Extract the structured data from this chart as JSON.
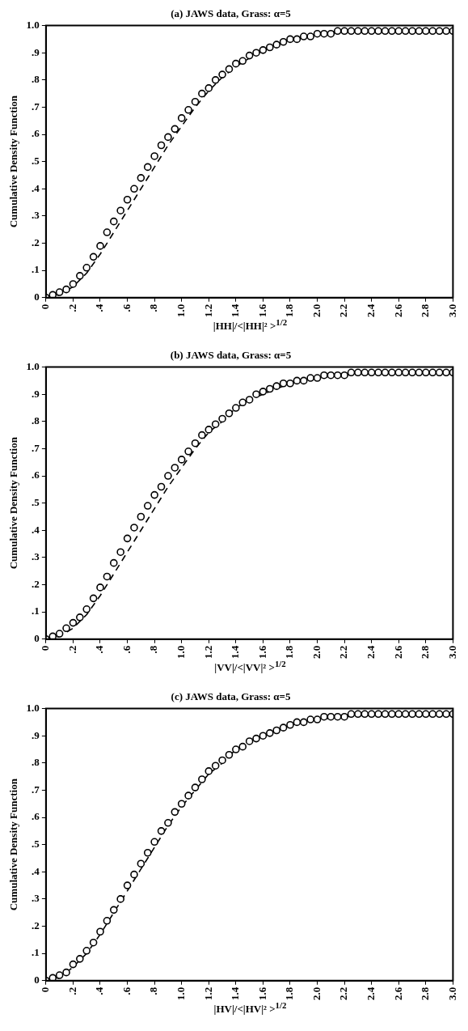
{
  "chart_data": [
    {
      "type": "scatter",
      "title": "(a) JAWS data, Grass: α=5",
      "xlabel": "|HH|/<|HH|² >$^{1/2}$",
      "ylabel": "Cumulative Density Function",
      "xlim": [
        0,
        3
      ],
      "ylim": [
        0,
        1
      ],
      "xticks": [
        0,
        {
          "value": 0.2,
          "label": ".2"
        },
        {
          "value": 0.4,
          "label": ".4"
        },
        {
          "value": 0.6,
          "label": ".6"
        },
        {
          "value": 0.8,
          "label": ".8"
        },
        {
          "value": 1,
          "label": "1.0"
        },
        1.2,
        1.4,
        1.6,
        1.8,
        {
          "value": 2,
          "label": "2.0"
        },
        2.2,
        2.4,
        2.6,
        2.8,
        {
          "value": 3,
          "label": "3.0"
        }
      ],
      "yticks": [
        {
          "value": 0,
          "label": "0"
        },
        {
          "value": 0.1,
          "label": ".1"
        },
        {
          "value": 0.2,
          "label": ".2"
        },
        {
          "value": 0.3,
          "label": ".3"
        },
        {
          "value": 0.4,
          "label": ".4"
        },
        {
          "value": 0.5,
          "label": ".5"
        },
        {
          "value": 0.6,
          "label": ".6"
        },
        {
          "value": 0.7,
          "label": ".7"
        },
        {
          "value": 0.8,
          "label": ".8"
        },
        {
          "value": 0.9,
          "label": ".9"
        },
        {
          "value": 1,
          "label": "1.0"
        }
      ],
      "legend": false,
      "grid": false,
      "series": [
        {
          "marker": "circle",
          "color": "#000000",
          "x": [
            0,
            0.05,
            0.1,
            0.15,
            0.2,
            0.25,
            0.3,
            0.35,
            0.4,
            0.45,
            0.5,
            0.55,
            0.6,
            0.65,
            0.7,
            0.75,
            0.8,
            0.85,
            0.9,
            0.95,
            1,
            1.05,
            1.1,
            1.15,
            1.2,
            1.25,
            1.3,
            1.35,
            1.4,
            1.45,
            1.5,
            1.55,
            1.6,
            1.65,
            1.7,
            1.75,
            1.8,
            1.85,
            1.9,
            1.95,
            2,
            2.05,
            2.1,
            2.15,
            2.2,
            2.25,
            2.3,
            2.35,
            2.4,
            2.45,
            2.5,
            2.55,
            2.6,
            2.65,
            2.7,
            2.75,
            2.8,
            2.85,
            2.9,
            2.95,
            3
          ],
          "values": [
            0,
            0.01,
            0.02,
            0.03,
            0.05,
            0.08,
            0.11,
            0.15,
            0.19,
            0.24,
            0.28,
            0.32,
            0.36,
            0.4,
            0.44,
            0.48,
            0.52,
            0.56,
            0.59,
            0.62,
            0.66,
            0.69,
            0.72,
            0.75,
            0.77,
            0.8,
            0.82,
            0.84,
            0.86,
            0.87,
            0.89,
            0.9,
            0.91,
            0.92,
            0.93,
            0.94,
            0.95,
            0.95,
            0.96,
            0.96,
            0.97,
            0.97,
            0.97,
            0.98,
            0.98,
            0.98,
            0.98,
            0.98,
            0.98,
            0.98,
            0.98,
            0.98,
            0.98,
            0.98,
            0.98,
            0.98,
            0.98,
            0.98,
            0.98,
            0.98,
            0.98
          ]
        },
        {
          "type": "line",
          "marker": "none",
          "line_style": "dashed",
          "color": "#000000",
          "x": [
            0,
            0.1,
            0.2,
            0.3,
            0.4,
            0.5,
            0.6,
            0.7,
            0.8,
            0.9,
            1,
            1.1,
            1.2,
            1.3,
            1.4,
            1.5,
            1.6,
            1.8,
            2,
            2.2,
            2.5,
            3
          ],
          "values": [
            0,
            0.01,
            0.04,
            0.09,
            0.16,
            0.24,
            0.32,
            0.4,
            0.48,
            0.56,
            0.63,
            0.7,
            0.76,
            0.81,
            0.85,
            0.88,
            0.91,
            0.95,
            0.97,
            0.98,
            0.98,
            0.98
          ]
        }
      ]
    },
    {
      "type": "scatter",
      "title": "(b) JAWS data, Grass: α=5",
      "xlabel": "|VV|/<|VV|² >$^{1/2}$",
      "ylabel": "Cumulative Density Function",
      "xlim": [
        0,
        3
      ],
      "ylim": [
        0,
        1
      ],
      "xticks": [
        0,
        {
          "value": 0.2,
          "label": ".2"
        },
        {
          "value": 0.4,
          "label": ".4"
        },
        {
          "value": 0.6,
          "label": ".6"
        },
        {
          "value": 0.8,
          "label": ".8"
        },
        {
          "value": 1,
          "label": "1.0"
        },
        1.2,
        1.4,
        1.6,
        1.8,
        {
          "value": 2,
          "label": "2.0"
        },
        2.2,
        2.4,
        2.6,
        2.8,
        {
          "value": 3,
          "label": "3.0"
        }
      ],
      "yticks": [
        {
          "value": 0,
          "label": "0"
        },
        {
          "value": 0.1,
          "label": ".1"
        },
        {
          "value": 0.2,
          "label": ".2"
        },
        {
          "value": 0.3,
          "label": ".3"
        },
        {
          "value": 0.4,
          "label": ".4"
        },
        {
          "value": 0.5,
          "label": ".5"
        },
        {
          "value": 0.6,
          "label": ".6"
        },
        {
          "value": 0.7,
          "label": ".7"
        },
        {
          "value": 0.8,
          "label": ".8"
        },
        {
          "value": 0.9,
          "label": ".9"
        },
        {
          "value": 1,
          "label": "1.0"
        }
      ],
      "legend": false,
      "grid": false,
      "series": [
        {
          "marker": "circle",
          "color": "#000000",
          "x": [
            0,
            0.05,
            0.1,
            0.15,
            0.2,
            0.25,
            0.3,
            0.35,
            0.4,
            0.45,
            0.5,
            0.55,
            0.6,
            0.65,
            0.7,
            0.75,
            0.8,
            0.85,
            0.9,
            0.95,
            1,
            1.05,
            1.1,
            1.15,
            1.2,
            1.25,
            1.3,
            1.35,
            1.4,
            1.45,
            1.5,
            1.55,
            1.6,
            1.65,
            1.7,
            1.75,
            1.8,
            1.85,
            1.9,
            1.95,
            2,
            2.05,
            2.1,
            2.15,
            2.2,
            2.25,
            2.3,
            2.35,
            2.4,
            2.45,
            2.5,
            2.55,
            2.6,
            2.65,
            2.7,
            2.75,
            2.8,
            2.85,
            2.9,
            2.95,
            3
          ],
          "values": [
            0,
            0.01,
            0.02,
            0.04,
            0.06,
            0.08,
            0.11,
            0.15,
            0.19,
            0.23,
            0.28,
            0.32,
            0.37,
            0.41,
            0.45,
            0.49,
            0.53,
            0.56,
            0.6,
            0.63,
            0.66,
            0.69,
            0.72,
            0.75,
            0.77,
            0.79,
            0.81,
            0.83,
            0.85,
            0.87,
            0.88,
            0.9,
            0.91,
            0.92,
            0.93,
            0.94,
            0.94,
            0.95,
            0.95,
            0.96,
            0.96,
            0.97,
            0.97,
            0.97,
            0.97,
            0.98,
            0.98,
            0.98,
            0.98,
            0.98,
            0.98,
            0.98,
            0.98,
            0.98,
            0.98,
            0.98,
            0.98,
            0.98,
            0.98,
            0.98,
            0.98
          ]
        },
        {
          "type": "line",
          "marker": "none",
          "line_style": "dashed",
          "color": "#000000",
          "x": [
            0,
            0.1,
            0.2,
            0.3,
            0.4,
            0.5,
            0.6,
            0.7,
            0.8,
            0.9,
            1,
            1.1,
            1.2,
            1.3,
            1.4,
            1.5,
            1.6,
            1.8,
            2,
            2.2,
            2.5,
            3
          ],
          "values": [
            0,
            0.01,
            0.04,
            0.09,
            0.16,
            0.24,
            0.32,
            0.4,
            0.48,
            0.56,
            0.63,
            0.7,
            0.76,
            0.8,
            0.85,
            0.88,
            0.9,
            0.94,
            0.96,
            0.97,
            0.98,
            0.98
          ]
        }
      ]
    },
    {
      "type": "scatter",
      "title": "(c) JAWS data, Grass: α=5",
      "xlabel": "|HV|/<|HV|² >$^{1/2}$",
      "ylabel": "Cumulative Density Function",
      "xlim": [
        0,
        3
      ],
      "ylim": [
        0,
        1
      ],
      "xticks": [
        0,
        {
          "value": 0.2,
          "label": ".2"
        },
        {
          "value": 0.4,
          "label": ".4"
        },
        {
          "value": 0.6,
          "label": ".6"
        },
        {
          "value": 0.8,
          "label": ".8"
        },
        {
          "value": 1,
          "label": "1.0"
        },
        1.2,
        1.4,
        1.6,
        1.8,
        {
          "value": 2,
          "label": "2.0"
        },
        2.2,
        2.4,
        2.6,
        2.8,
        {
          "value": 3,
          "label": "3.0"
        }
      ],
      "yticks": [
        {
          "value": 0,
          "label": "0"
        },
        {
          "value": 0.1,
          "label": ".1"
        },
        {
          "value": 0.2,
          "label": ".2"
        },
        {
          "value": 0.3,
          "label": ".3"
        },
        {
          "value": 0.4,
          "label": ".4"
        },
        {
          "value": 0.5,
          "label": ".5"
        },
        {
          "value": 0.6,
          "label": ".6"
        },
        {
          "value": 0.7,
          "label": ".7"
        },
        {
          "value": 0.8,
          "label": ".8"
        },
        {
          "value": 0.9,
          "label": ".9"
        },
        {
          "value": 1,
          "label": "1.0"
        }
      ],
      "legend": false,
      "grid": false,
      "series": [
        {
          "marker": "circle",
          "color": "#000000",
          "x": [
            0,
            0.05,
            0.1,
            0.15,
            0.2,
            0.25,
            0.3,
            0.35,
            0.4,
            0.45,
            0.5,
            0.55,
            0.6,
            0.65,
            0.7,
            0.75,
            0.8,
            0.85,
            0.9,
            0.95,
            1,
            1.05,
            1.1,
            1.15,
            1.2,
            1.25,
            1.3,
            1.35,
            1.4,
            1.45,
            1.5,
            1.55,
            1.6,
            1.65,
            1.7,
            1.75,
            1.8,
            1.85,
            1.9,
            1.95,
            2,
            2.05,
            2.1,
            2.15,
            2.2,
            2.25,
            2.3,
            2.35,
            2.4,
            2.45,
            2.5,
            2.55,
            2.6,
            2.65,
            2.7,
            2.75,
            2.8,
            2.85,
            2.9,
            2.95,
            3
          ],
          "values": [
            0,
            0.01,
            0.02,
            0.03,
            0.06,
            0.08,
            0.11,
            0.14,
            0.18,
            0.22,
            0.26,
            0.3,
            0.35,
            0.39,
            0.43,
            0.47,
            0.51,
            0.55,
            0.58,
            0.62,
            0.65,
            0.68,
            0.71,
            0.74,
            0.77,
            0.79,
            0.81,
            0.83,
            0.85,
            0.86,
            0.88,
            0.89,
            0.9,
            0.91,
            0.92,
            0.93,
            0.94,
            0.95,
            0.95,
            0.96,
            0.96,
            0.97,
            0.97,
            0.97,
            0.97,
            0.98,
            0.98,
            0.98,
            0.98,
            0.98,
            0.98,
            0.98,
            0.98,
            0.98,
            0.98,
            0.98,
            0.98,
            0.98,
            0.98,
            0.98,
            0.98
          ]
        },
        {
          "type": "line",
          "marker": "none",
          "line_style": "dashed",
          "color": "#000000",
          "x": [
            0,
            0.1,
            0.2,
            0.3,
            0.4,
            0.5,
            0.6,
            0.7,
            0.8,
            0.9,
            1,
            1.1,
            1.2,
            1.3,
            1.4,
            1.5,
            1.6,
            1.8,
            2,
            2.2,
            2.5,
            3
          ],
          "values": [
            0,
            0.01,
            0.05,
            0.1,
            0.17,
            0.25,
            0.33,
            0.41,
            0.49,
            0.57,
            0.64,
            0.7,
            0.76,
            0.8,
            0.85,
            0.88,
            0.9,
            0.94,
            0.96,
            0.97,
            0.98,
            0.98
          ]
        }
      ]
    }
  ]
}
